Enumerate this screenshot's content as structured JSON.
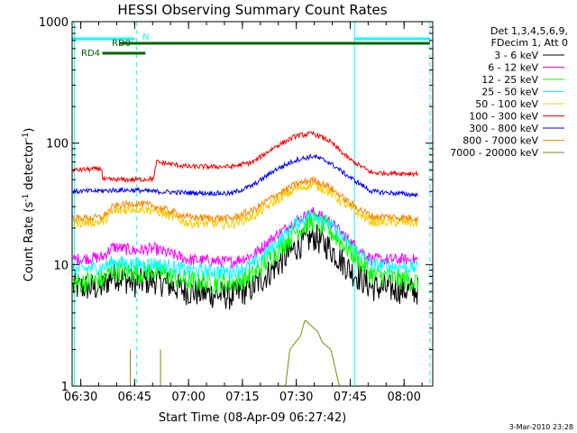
{
  "chart_data": {
    "type": "line",
    "title": "HESSI Observing Summary Count Rates",
    "xlabel": "Start Time (08-Apr-09 06:27:42)",
    "ylabel_main": "Count Rate (s",
    "ylabel_sup1": "-1",
    "ylabel_mid": " detector",
    "ylabel_sup2": "-1",
    "ylabel_end": ")",
    "yscale": "log",
    "ylim": [
      1,
      1000
    ],
    "xlim": [
      6.46,
      8.133
    ],
    "xticks": [
      {
        "v": 6.5,
        "label": "06:30"
      },
      {
        "v": 6.75,
        "label": "06:45"
      },
      {
        "v": 7.0,
        "label": "07:00"
      },
      {
        "v": 7.25,
        "label": "07:15"
      },
      {
        "v": 7.5,
        "label": "07:30"
      },
      {
        "v": 7.75,
        "label": "07:45"
      },
      {
        "v": 8.0,
        "label": "08:00"
      }
    ],
    "yticks": [
      {
        "v": 1,
        "label": "1"
      },
      {
        "v": 10,
        "label": "10"
      },
      {
        "v": 100,
        "label": "100"
      },
      {
        "v": 1000,
        "label": "1000"
      }
    ],
    "legend_header": [
      "Det 1,3,4,5,6,9,",
      "FDecim 1, Att 0"
    ],
    "legend_position": "outside-right",
    "series": [
      {
        "name": "3 - 6 keV",
        "color": "#000000",
        "values": [
          [
            6.46,
            6.5
          ],
          [
            6.6,
            6.5
          ],
          [
            6.65,
            8.3
          ],
          [
            6.75,
            7.0
          ],
          [
            6.84,
            7.5
          ],
          [
            7.0,
            6.0
          ],
          [
            7.2,
            5.5
          ],
          [
            7.3,
            6.5
          ],
          [
            7.4,
            9.5
          ],
          [
            7.5,
            14
          ],
          [
            7.58,
            17
          ],
          [
            7.65,
            14
          ],
          [
            7.75,
            9
          ],
          [
            7.85,
            6.5
          ],
          [
            8.1,
            6.0
          ]
        ]
      },
      {
        "name": "6 - 12 keV",
        "color": "#ff00ff",
        "values": [
          [
            6.46,
            11
          ],
          [
            6.6,
            11.5
          ],
          [
            6.65,
            14
          ],
          [
            6.75,
            13
          ],
          [
            6.84,
            13.5
          ],
          [
            7.0,
            11
          ],
          [
            7.2,
            10.5
          ],
          [
            7.3,
            12
          ],
          [
            7.4,
            17
          ],
          [
            7.5,
            23
          ],
          [
            7.58,
            27
          ],
          [
            7.65,
            23
          ],
          [
            7.75,
            15.5
          ],
          [
            7.85,
            11
          ],
          [
            8.1,
            11
          ]
        ]
      },
      {
        "name": "12 - 25 keV",
        "color": "#00ff00",
        "values": [
          [
            6.46,
            7
          ],
          [
            6.6,
            7.5
          ],
          [
            6.65,
            9
          ],
          [
            6.75,
            8.5
          ],
          [
            6.84,
            8.8
          ],
          [
            7.0,
            7.3
          ],
          [
            7.2,
            7
          ],
          [
            7.3,
            8.2
          ],
          [
            7.4,
            12.5
          ],
          [
            7.5,
            19
          ],
          [
            7.58,
            23
          ],
          [
            7.65,
            19.5
          ],
          [
            7.75,
            13
          ],
          [
            7.85,
            8.3
          ],
          [
            8.1,
            7
          ]
        ]
      },
      {
        "name": "25 - 50 keV",
        "color": "#00ffff",
        "values": [
          [
            6.46,
            9
          ],
          [
            6.6,
            9.5
          ],
          [
            6.65,
            10.5
          ],
          [
            6.75,
            10
          ],
          [
            6.84,
            10.2
          ],
          [
            7.0,
            9
          ],
          [
            7.2,
            8.7
          ],
          [
            7.3,
            10
          ],
          [
            7.4,
            14.5
          ],
          [
            7.5,
            22
          ],
          [
            7.58,
            26.5
          ],
          [
            7.65,
            22
          ],
          [
            7.75,
            14.5
          ],
          [
            7.85,
            10
          ],
          [
            8.1,
            9.3
          ]
        ]
      },
      {
        "name": "50 - 100 keV",
        "color": "#ffcc00",
        "values": [
          [
            6.46,
            22
          ],
          [
            6.6,
            22.5
          ],
          [
            6.65,
            27
          ],
          [
            6.75,
            29
          ],
          [
            6.84,
            28
          ],
          [
            7.0,
            22
          ],
          [
            7.2,
            21.5
          ],
          [
            7.3,
            25
          ],
          [
            7.4,
            33
          ],
          [
            7.5,
            42
          ],
          [
            7.58,
            46
          ],
          [
            7.65,
            40
          ],
          [
            7.75,
            29
          ],
          [
            7.85,
            22.5
          ],
          [
            8.1,
            22
          ]
        ]
      },
      {
        "name": "100 - 300 keV",
        "color": "#ff0000",
        "values": [
          [
            6.46,
            60
          ],
          [
            6.55,
            61
          ],
          [
            6.6,
            62
          ],
          [
            6.6,
            50
          ],
          [
            6.75,
            50
          ],
          [
            6.84,
            51
          ],
          [
            6.85,
            70
          ],
          [
            7.0,
            64
          ],
          [
            7.2,
            64
          ],
          [
            7.3,
            70
          ],
          [
            7.4,
            93
          ],
          [
            7.5,
            115
          ],
          [
            7.58,
            120
          ],
          [
            7.65,
            105
          ],
          [
            7.75,
            73
          ],
          [
            7.85,
            57
          ],
          [
            8.1,
            56
          ]
        ]
      },
      {
        "name": "300 - 800 keV",
        "color": "#0000ff",
        "values": [
          [
            6.46,
            40
          ],
          [
            6.6,
            40.5
          ],
          [
            6.65,
            41
          ],
          [
            6.75,
            41
          ],
          [
            6.84,
            40
          ],
          [
            7.0,
            39
          ],
          [
            7.2,
            38.5
          ],
          [
            7.3,
            45
          ],
          [
            7.4,
            60
          ],
          [
            7.5,
            73
          ],
          [
            7.58,
            78
          ],
          [
            7.65,
            70
          ],
          [
            7.75,
            52
          ],
          [
            7.85,
            40
          ],
          [
            8.1,
            37
          ]
        ]
      },
      {
        "name": "800 - 7000 keV",
        "color": "#ff8800",
        "values": [
          [
            6.46,
            24
          ],
          [
            6.6,
            24.5
          ],
          [
            6.65,
            30
          ],
          [
            6.75,
            32
          ],
          [
            6.84,
            30.5
          ],
          [
            7.0,
            24.5
          ],
          [
            7.2,
            24
          ],
          [
            7.3,
            28
          ],
          [
            7.4,
            37
          ],
          [
            7.5,
            46
          ],
          [
            7.58,
            50
          ],
          [
            7.65,
            44
          ],
          [
            7.75,
            32
          ],
          [
            7.85,
            25
          ],
          [
            8.1,
            24
          ]
        ]
      },
      {
        "name": "7000 - 20000 keV",
        "color": "#888800",
        "values": [
          [
            6.46,
            1
          ],
          [
            7.45,
            1
          ],
          [
            7.47,
            2.0
          ],
          [
            7.52,
            2.6
          ],
          [
            7.54,
            3.5
          ],
          [
            7.6,
            2.8
          ],
          [
            7.62,
            2.3
          ],
          [
            7.66,
            2.0
          ],
          [
            7.7,
            1
          ],
          [
            8.1,
            1
          ]
        ]
      }
    ],
    "flags": [
      {
        "name": "N",
        "color": "#00ffff",
        "label": "N",
        "intervals": [
          [
            6.46,
            6.75
          ],
          [
            7.77,
            8.12
          ]
        ]
      },
      {
        "name": "RD0",
        "color": "#006400",
        "label": "RD0",
        "intervals": [
          [
            6.68,
            8.12
          ]
        ]
      },
      {
        "name": "RD4",
        "color": "#006400",
        "label": "RD4",
        "intervals": [
          [
            6.6,
            6.8
          ]
        ]
      }
    ],
    "vlines_solid": [
      6.47,
      7.77
    ],
    "vlines_dashed": [
      6.76,
      8.12
    ],
    "spikes_olive": [
      6.73,
      6.87
    ],
    "grid": false
  },
  "footer_date": "3-Mar-2010 23:28"
}
